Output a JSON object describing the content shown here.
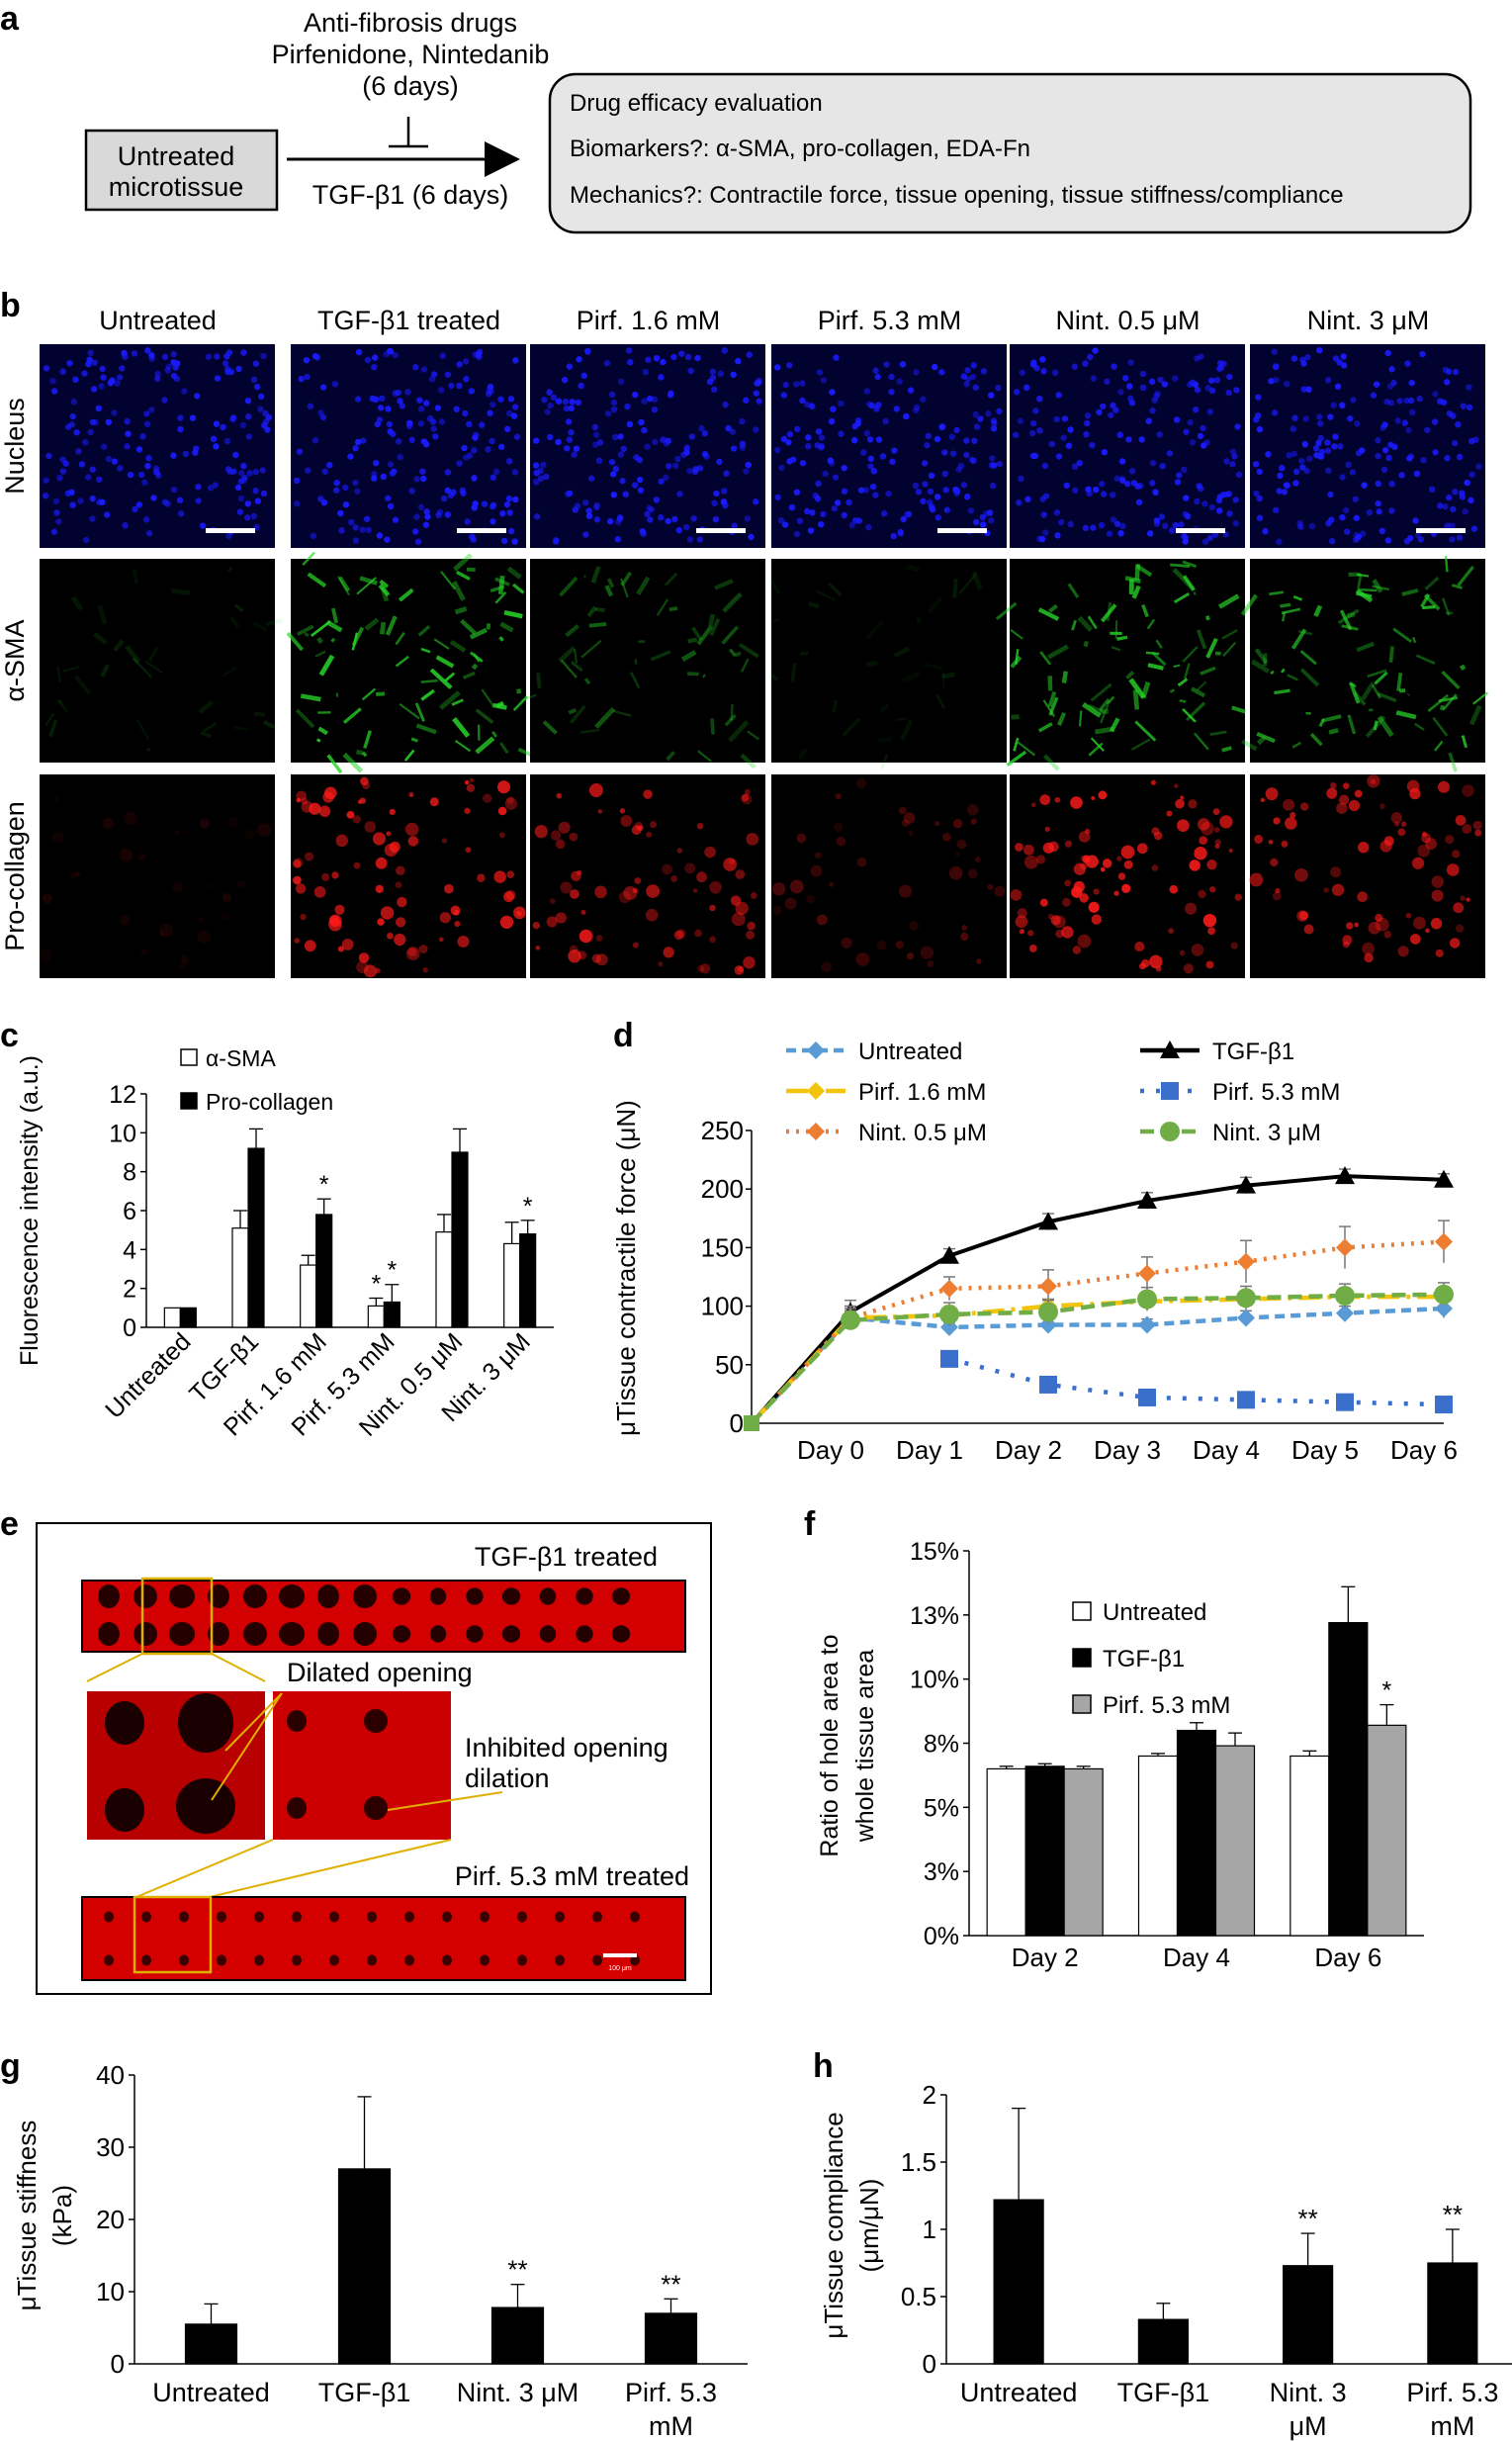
{
  "panel_labels": {
    "a": "a",
    "b": "b",
    "c": "c",
    "d": "d",
    "e": "e",
    "f": "f",
    "g": "g",
    "h": "h"
  },
  "panel_a": {
    "untreated_box": [
      "Untreated",
      "microtissue"
    ],
    "drugs_text": [
      "Anti-fibrosis drugs",
      "Pirfenidone, Nintedanib",
      "(6 days)"
    ],
    "tgf_text": "TGF-β1 (6 days)",
    "eval_lines": [
      "Drug efficacy evaluation",
      "Biomarkers?: α-SMA, pro-collagen, EDA-Fn",
      "Mechanics?: Contractile force, tissue opening, tissue stiffness/compliance"
    ]
  },
  "panel_b": {
    "columns": [
      "Untreated",
      "TGF-β1 treated",
      "Pirf. 1.6 mM",
      "Pirf. 5.3 mM",
      "Nint. 0.5 μM",
      "Nint. 3 μM"
    ],
    "rows": [
      {
        "label": "Nucleus",
        "color": "#1a1aff",
        "bg": "#020230",
        "intensity": [
          0.7,
          0.75,
          0.6,
          0.6,
          0.7,
          0.7
        ]
      },
      {
        "label": "α-SMA",
        "color": "#28d628",
        "bg": "#000000",
        "intensity": [
          0.15,
          0.9,
          0.45,
          0.12,
          0.85,
          0.8
        ]
      },
      {
        "label": "Pro-collagen",
        "color": "#ff1a1a",
        "bg": "#000000",
        "intensity": [
          0.1,
          0.85,
          0.7,
          0.3,
          0.9,
          0.75
        ]
      }
    ]
  },
  "chart_data": [
    {
      "panel": "c",
      "type": "bar",
      "ylabel": "Fluorescence intensity (a.u.)",
      "ylim": [
        0,
        12
      ],
      "yticks": [
        "0",
        "2",
        "4",
        "6",
        "8",
        "10",
        "12"
      ],
      "categories": [
        "Untreated",
        "TGF-β1",
        "Pirf. 1.6 mM",
        "Pirf. 5.3 mM",
        "Nint. 0.5 μM",
        "Nint. 3 μM"
      ],
      "series": [
        {
          "name": "α-SMA",
          "color": "#ffffff",
          "values": [
            1.0,
            5.1,
            3.2,
            1.1,
            4.9,
            4.3
          ],
          "errors": [
            0,
            0.9,
            0.5,
            0.4,
            0.9,
            1.1
          ]
        },
        {
          "name": "Pro-collagen",
          "color": "#000000",
          "values": [
            1.0,
            9.2,
            5.8,
            1.3,
            9.0,
            4.8
          ],
          "errors": [
            0,
            1.0,
            0.8,
            0.9,
            1.2,
            0.7
          ]
        }
      ],
      "annotations": [
        {
          "category": 2,
          "series": 1,
          "text": "*"
        },
        {
          "category": 3,
          "series": 0,
          "text": "*"
        },
        {
          "category": 3,
          "series": 1,
          "text": "*"
        },
        {
          "category": 5,
          "series": 1,
          "text": "*"
        }
      ]
    },
    {
      "panel": "d",
      "type": "line",
      "ylabel": "μTissue contractile force (μN)",
      "ylim": [
        0,
        250
      ],
      "yticks": [
        "0",
        "50",
        "100",
        "150",
        "200",
        "250"
      ],
      "categories": [
        "",
        "Day 0",
        "Day 1",
        "Day 2",
        "Day 3",
        "Day 4",
        "Day 5",
        "Day 6"
      ],
      "series": [
        {
          "name": "Untreated",
          "color": "#5b9bd5",
          "dash": "10,6",
          "marker": "diamond",
          "values": [
            0,
            90,
            82,
            84,
            84,
            90,
            94,
            98
          ],
          "errors": [
            0,
            10,
            4,
            5,
            5,
            6,
            6,
            8
          ]
        },
        {
          "name": "TGF-β1",
          "color": "#000000",
          "dash": "",
          "marker": "triangle",
          "values": [
            0,
            95,
            143,
            172,
            190,
            203,
            211,
            208
          ],
          "errors": [
            0,
            10,
            6,
            7,
            7,
            7,
            6,
            5
          ]
        },
        {
          "name": "Pirf.  1.6 mM",
          "color": "#f2c40c",
          "dash": "22,7,4,7",
          "marker": "diamond",
          "values": [
            0,
            90,
            92,
            100,
            104,
            106,
            108,
            108
          ],
          "errors": [
            0,
            8,
            5,
            6,
            6,
            6,
            6,
            6
          ]
        },
        {
          "name": "Pirf.  5.3 mM",
          "color": "#3a6fcc",
          "dash": "4,12",
          "marker": "square",
          "values": [
            null,
            null,
            55,
            33,
            22,
            20,
            18,
            16
          ],
          "errors": [
            0,
            0,
            3,
            3,
            3,
            3,
            3,
            3
          ]
        },
        {
          "name": "Nint. 0.5 μM",
          "color": "#ed7d31",
          "dash": "3,7",
          "marker": "diamond",
          "values": [
            0,
            90,
            115,
            117,
            128,
            138,
            150,
            155
          ],
          "errors": [
            0,
            10,
            10,
            14,
            14,
            18,
            18,
            18
          ]
        },
        {
          "name": "Nint. 3 μM",
          "color": "#70ad47",
          "dash": "14,7",
          "marker": "circle",
          "values": [
            0,
            88,
            93,
            95,
            106,
            107,
            109,
            110
          ],
          "errors": [
            0,
            8,
            10,
            10,
            10,
            10,
            10,
            10
          ]
        }
      ]
    },
    {
      "panel": "f",
      "type": "bar",
      "ylabel": "Ratio of hole area to whole tissue area",
      "ylim": [
        0,
        15
      ],
      "yticks": [
        "0%",
        "3%",
        "5%",
        "8%",
        "10%",
        "13%",
        "15%"
      ],
      "categories": [
        "Day 2",
        "Day 4",
        "Day 6"
      ],
      "series": [
        {
          "name": "Untreated",
          "color": "#ffffff",
          "values": [
            6.5,
            7.0,
            7.0
          ],
          "errors": [
            0.1,
            0.1,
            0.2
          ]
        },
        {
          "name": "TGF-β1",
          "color": "#000000",
          "values": [
            6.6,
            8.0,
            12.2
          ],
          "errors": [
            0.1,
            0.3,
            1.4
          ]
        },
        {
          "name": "Pirf. 5.3 mM",
          "color": "#a6a6a6",
          "values": [
            6.5,
            7.4,
            8.2
          ],
          "errors": [
            0.1,
            0.5,
            0.8
          ]
        }
      ],
      "annotations": [
        {
          "category": 2,
          "series": 2,
          "text": "*"
        }
      ]
    },
    {
      "panel": "g",
      "type": "bar",
      "ylabel": "μTissue stiffness (kPa)",
      "ylim": [
        0,
        40
      ],
      "yticks": [
        "0",
        "10",
        "20",
        "30",
        "40"
      ],
      "categories": [
        "Untreated",
        "TGF-β1",
        "Nint. 3 μM",
        "Pirf. 5.3 mM"
      ],
      "series": [
        {
          "color": "#000000",
          "values": [
            5.5,
            27,
            7.8,
            7.0
          ],
          "errors": [
            2.8,
            10,
            3.2,
            2.0
          ]
        }
      ],
      "annotations": [
        {
          "category": 2,
          "series": 0,
          "text": "**"
        },
        {
          "category": 3,
          "series": 0,
          "text": "**"
        }
      ]
    },
    {
      "panel": "h",
      "type": "bar",
      "ylabel": "μTissue compliance (μm/μN)",
      "ylim": [
        0,
        2
      ],
      "yticks": [
        "0",
        "0.5",
        "1",
        "1.5",
        "2"
      ],
      "categories": [
        "Untreated",
        "TGF-β1",
        "Nint. 3 μM",
        "Pirf. 5.3 mM"
      ],
      "series": [
        {
          "color": "#000000",
          "values": [
            1.22,
            0.33,
            0.73,
            0.75
          ],
          "errors": [
            0.68,
            0.12,
            0.24,
            0.25
          ]
        }
      ],
      "annotations": [
        {
          "category": 2,
          "series": 0,
          "text": "**"
        },
        {
          "category": 3,
          "series": 0,
          "text": "**"
        }
      ]
    }
  ],
  "panel_e": {
    "top_label": "TGF-β1 treated",
    "bottom_label": "Pirf. 5.3 mM treated",
    "dilated": "Dilated opening",
    "inhibited": [
      "Inhibited opening",
      "dilation"
    ],
    "scale": "100 μm"
  }
}
